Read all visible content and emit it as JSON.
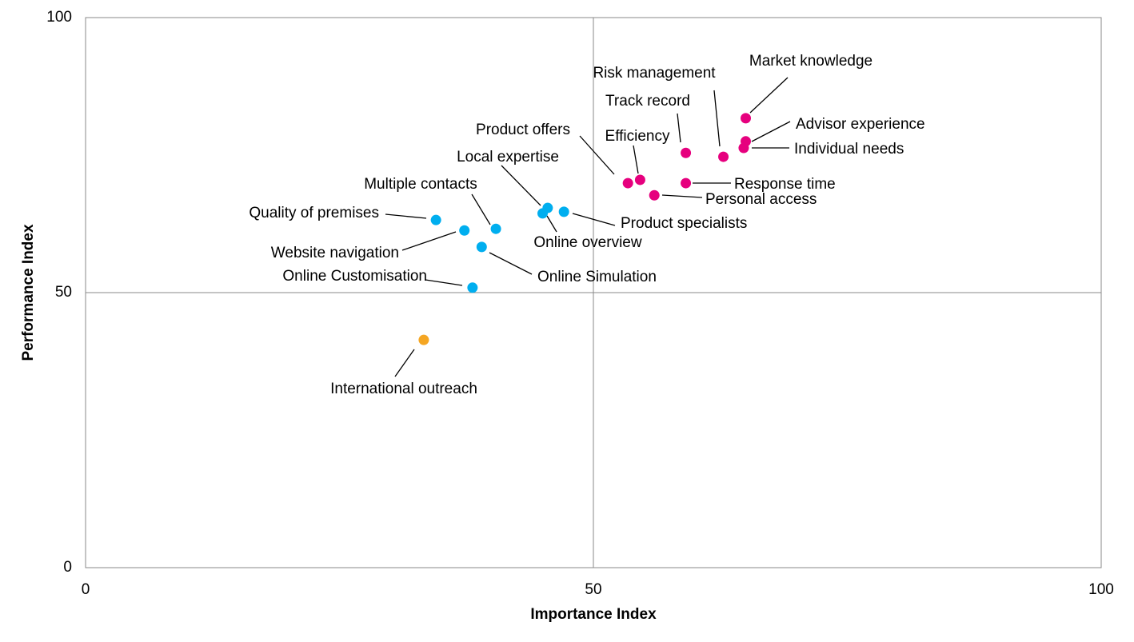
{
  "chart_data": {
    "type": "scatter",
    "x_label": "Importance Index",
    "y_label": "Performance Index",
    "xlim": [
      0,
      100
    ],
    "ylim": [
      0,
      100
    ],
    "xticks": [
      0,
      50,
      100
    ],
    "yticks": [
      0,
      50,
      100
    ],
    "grid": true,
    "series": [
      {
        "color": "#e6007e",
        "labels": [
          "Market knowledge",
          "Advisor experience",
          "Individual needs",
          "Risk management",
          "Track record",
          "Response time",
          "Efficiency",
          "Product offers",
          "Personal access"
        ],
        "x": [
          65.0,
          65.0,
          64.8,
          62.8,
          59.1,
          59.1,
          54.6,
          53.4,
          56.0
        ],
        "values": [
          81.7,
          77.5,
          76.3,
          74.7,
          75.4,
          69.9,
          70.5,
          69.9,
          67.7
        ]
      },
      {
        "color": "#00aeef",
        "labels": [
          "Product specialists",
          "Online overview",
          "Local expertise",
          "Multiple contacts",
          "Quality of premises",
          "Website navigation",
          "Online Simulation",
          "Online Customisation"
        ],
        "x": [
          47.1,
          45.0,
          45.5,
          40.4,
          34.5,
          37.3,
          39.0,
          38.1
        ],
        "values": [
          64.7,
          64.4,
          65.4,
          61.6,
          63.2,
          61.3,
          58.3,
          50.9
        ]
      },
      {
        "color": "#f5a623",
        "labels": [
          "International outreach"
        ],
        "x": [
          33.3
        ],
        "values": [
          41.4
        ]
      }
    ]
  }
}
